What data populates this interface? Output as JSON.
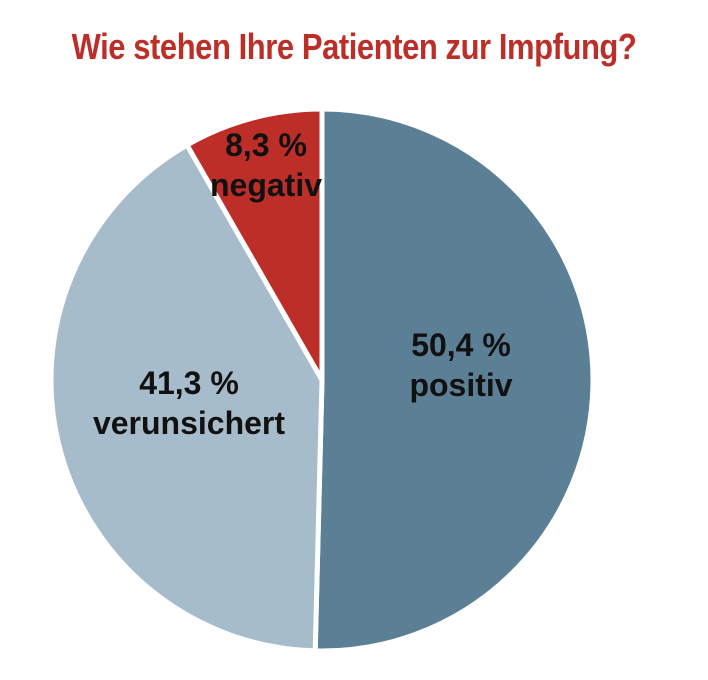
{
  "chart_data": {
    "type": "pie",
    "title": "Wie stehen Ihre Patienten zur Impfung?",
    "slices": [
      {
        "value": 50.4,
        "value_label": "50,4 %",
        "category": "positiv",
        "color": "#5b7f95"
      },
      {
        "value": 41.3,
        "value_label": "41,3 %",
        "category": "verunsichert",
        "color": "#a6bccb"
      },
      {
        "value": 8.3,
        "value_label": "8,3 %",
        "category": "negativ",
        "color": "#be2e28"
      }
    ],
    "start": "12 o'clock",
    "direction": "clockwise",
    "colors": {
      "title": "#be2e28",
      "label": "#111111",
      "separator": "#ffffff"
    }
  }
}
